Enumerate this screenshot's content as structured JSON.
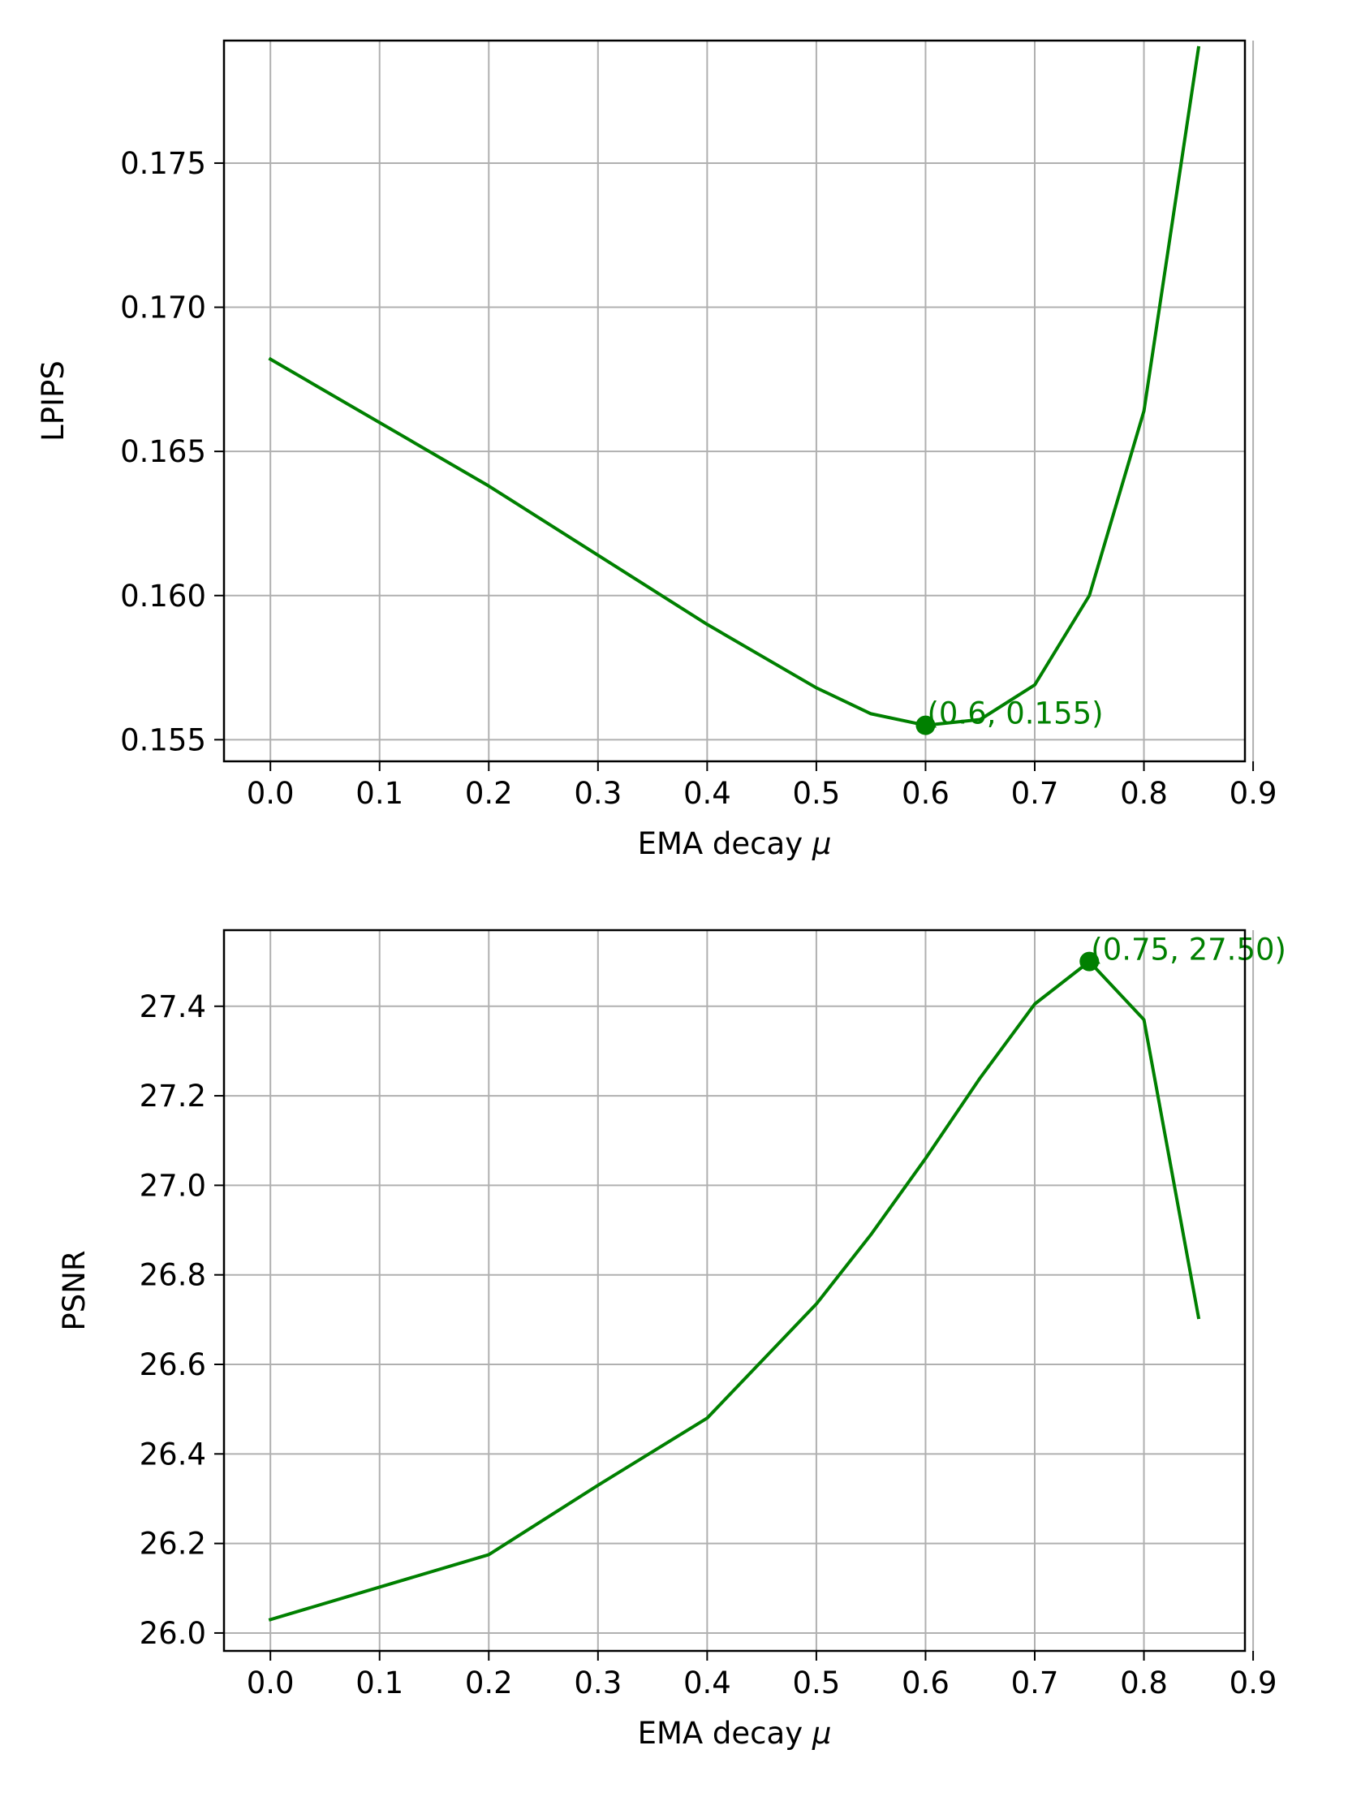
{
  "chart_data": [
    {
      "type": "line",
      "title": "",
      "xlabel": "EMA decay",
      "xlabel_symbol": "μ",
      "ylabel": "LPIPS",
      "xlim": [
        -0.0425,
        0.8925
      ],
      "ylim": [
        0.15425,
        0.17925
      ],
      "grid": true,
      "xticks": [
        "0.0",
        "0.1",
        "0.2",
        "0.3",
        "0.4",
        "0.5",
        "0.6",
        "0.7",
        "0.8",
        "0.9"
      ],
      "yticks": [
        "0.155",
        "0.160",
        "0.165",
        "0.170",
        "0.175"
      ],
      "series": [
        {
          "color": "#008000",
          "x": [
            0.0,
            0.2,
            0.4,
            0.5,
            0.55,
            0.6,
            0.65,
            0.7,
            0.75,
            0.8,
            0.85
          ],
          "y": [
            0.1682,
            0.1638,
            0.159,
            0.1568,
            0.1559,
            0.1555,
            0.1557,
            0.1569,
            0.16,
            0.1664,
            0.179
          ]
        }
      ],
      "highlight": {
        "x": 0.6,
        "y": 0.1555,
        "label": "(0.6, 0.155)"
      }
    },
    {
      "type": "line",
      "title": "",
      "xlabel": "EMA decay",
      "xlabel_symbol": "μ",
      "ylabel": "PSNR",
      "xlim": [
        -0.0425,
        0.8925
      ],
      "ylim": [
        25.96,
        27.57
      ],
      "grid": true,
      "xticks": [
        "0.0",
        "0.1",
        "0.2",
        "0.3",
        "0.4",
        "0.5",
        "0.6",
        "0.7",
        "0.8",
        "0.9"
      ],
      "yticks": [
        "26.0",
        "26.2",
        "26.4",
        "26.6",
        "26.8",
        "27.0",
        "27.2",
        "27.4"
      ],
      "series": [
        {
          "color": "#008000",
          "x": [
            0.0,
            0.2,
            0.3,
            0.4,
            0.5,
            0.55,
            0.6,
            0.65,
            0.7,
            0.75,
            0.8,
            0.85
          ],
          "y": [
            26.03,
            26.175,
            26.33,
            26.48,
            26.735,
            26.89,
            27.06,
            27.24,
            27.405,
            27.5,
            27.37,
            26.705
          ]
        }
      ],
      "highlight": {
        "x": 0.75,
        "y": 27.5,
        "label": "(0.75, 27.50)"
      }
    }
  ]
}
